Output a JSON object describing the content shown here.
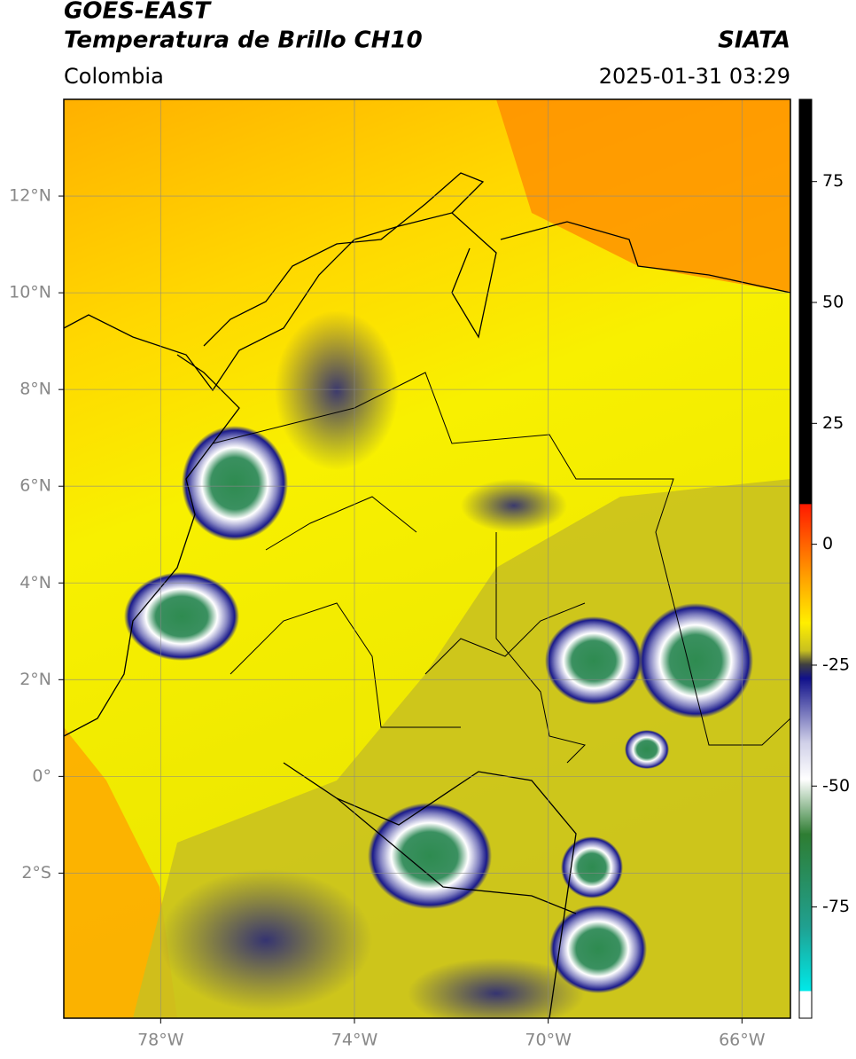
{
  "header": {
    "title": "GOES-EAST",
    "subtitle": "Temperatura de Brillo CH10",
    "region": "Colombia",
    "source": "SIATA",
    "datetime": "2025-01-31 03:29"
  },
  "map": {
    "lonlim": [
      -80,
      -65
    ],
    "latlim": [
      -5,
      14
    ],
    "lat_ticks": [
      {
        "value": 12,
        "label": "12°N"
      },
      {
        "value": 10,
        "label": "10°N"
      },
      {
        "value": 8,
        "label": "8°N"
      },
      {
        "value": 6,
        "label": "6°N"
      },
      {
        "value": 4,
        "label": "4°N"
      },
      {
        "value": 2,
        "label": "2°N"
      },
      {
        "value": 0,
        "label": "0°"
      },
      {
        "value": -2,
        "label": "2°S"
      }
    ],
    "lon_ticks": [
      {
        "value": -78,
        "label": "78°W"
      },
      {
        "value": -74,
        "label": "74°W"
      },
      {
        "value": -70,
        "label": "70°W"
      },
      {
        "value": -66,
        "label": "66°W"
      }
    ]
  },
  "colorbar": {
    "lim": [
      -98,
      92
    ],
    "ticks": [
      75,
      50,
      25,
      0,
      -25,
      -50,
      -75
    ]
  }
}
